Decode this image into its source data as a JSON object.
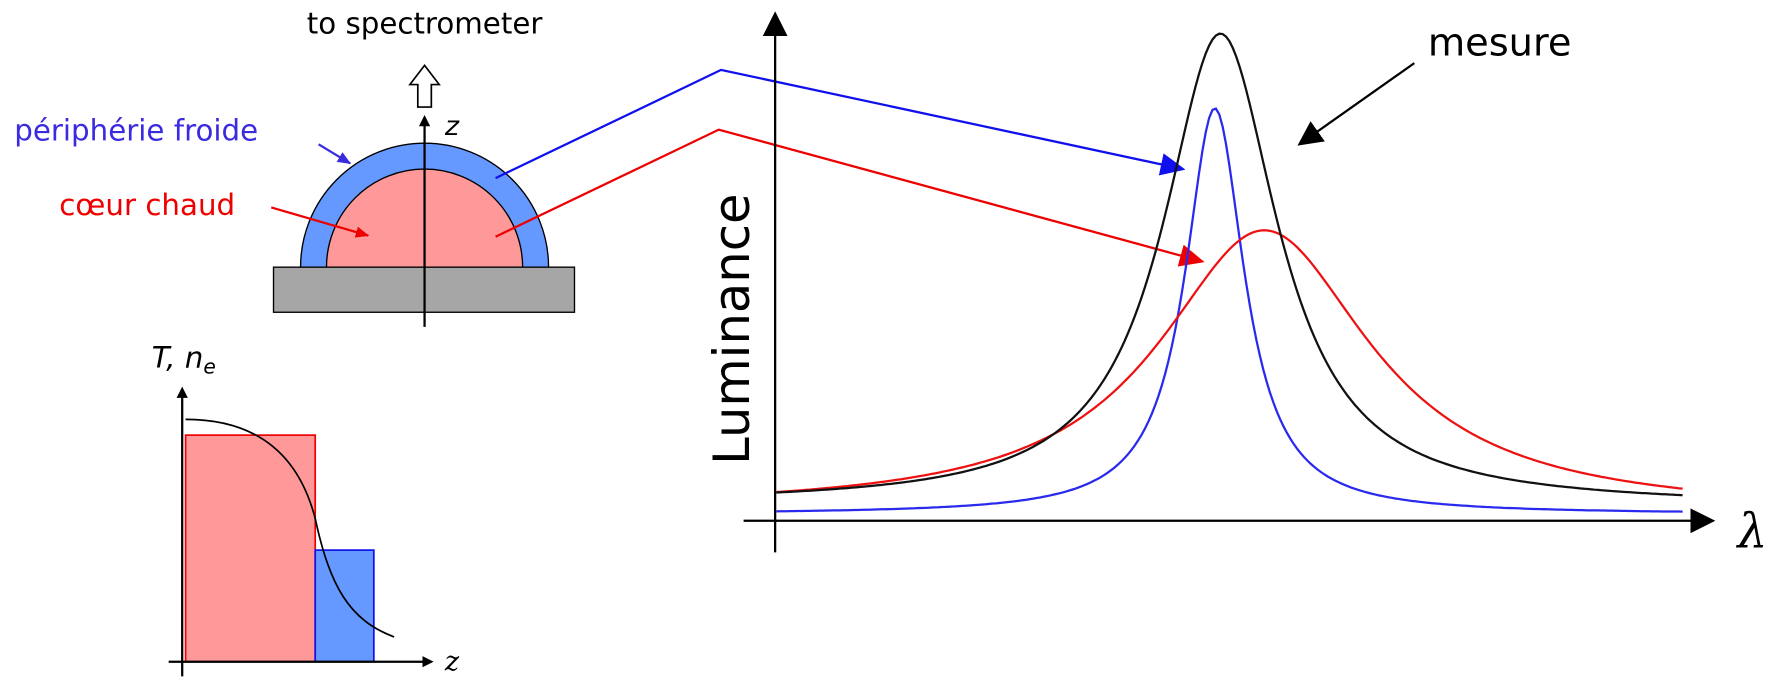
{
  "labels": {
    "to_spectrometer": "to spectrometer",
    "peripherie": "périphérie froide",
    "coeur": "cœur chaud",
    "dome_z": "z",
    "profile_y_main": "T, n",
    "profile_y_sub": "e",
    "profile_x": "z",
    "luminance": "Luminance",
    "lambda": "λ",
    "mesure": "mesure"
  }
}
